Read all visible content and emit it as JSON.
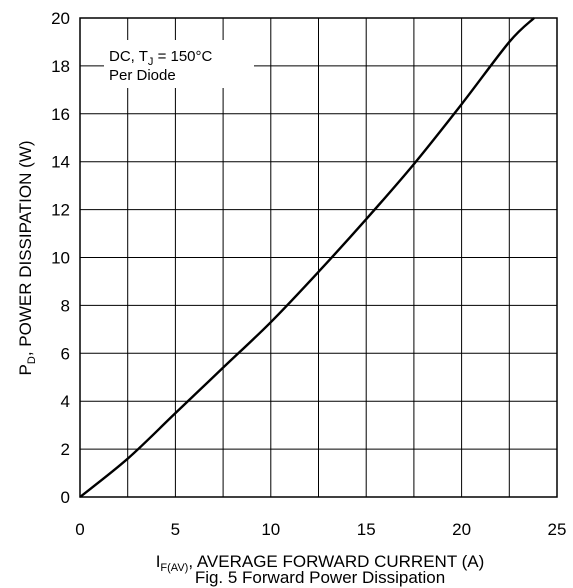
{
  "chart_data": {
    "type": "line",
    "title": "",
    "caption": "Fig. 5 Forward Power Dissipation",
    "xlabel": {
      "prefix": "I",
      "sub": "F(AV)",
      "suffix": ", AVERAGE FORWARD CURRENT (A)"
    },
    "ylabel": {
      "prefix": "P",
      "sub": "D",
      "suffix": ", POWER DISSIPATION (W)"
    },
    "xlim": [
      0,
      25
    ],
    "ylim": [
      0,
      20
    ],
    "x_ticks": [
      0,
      5,
      10,
      15,
      20,
      25
    ],
    "y_ticks": [
      0,
      2,
      4,
      6,
      8,
      10,
      12,
      14,
      16,
      18,
      20
    ],
    "x_ticks_labels": [
      "0",
      "5",
      "10",
      "15",
      "20",
      "25"
    ],
    "y_ticks_labels": [
      "0",
      "2",
      "4",
      "6",
      "8",
      "10",
      "12",
      "14",
      "16",
      "18",
      "20"
    ],
    "grid": true,
    "annotation": {
      "line1_prefix": "DC, T",
      "line1_sub": "J",
      "line1_suffix": " = 150°C",
      "line2": "Per Diode"
    },
    "series": [
      {
        "color": "#000000",
        "x": [
          0,
          2.5,
          5,
          7.5,
          10,
          12.5,
          15,
          17.5,
          20,
          22.5,
          23.8
        ],
        "y": [
          0,
          1.6,
          3.5,
          5.4,
          7.3,
          9.4,
          11.6,
          13.9,
          16.4,
          19.0,
          20.0
        ]
      }
    ]
  }
}
